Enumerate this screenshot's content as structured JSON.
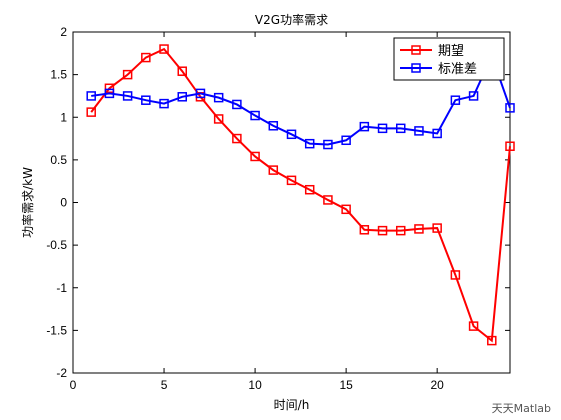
{
  "chart_data": {
    "type": "line",
    "title": "V2G功率需求",
    "xlabel": "时间/h",
    "ylabel": "功率需求/kW",
    "xlim": [
      0,
      24
    ],
    "ylim": [
      -2,
      2
    ],
    "xticks": [
      0,
      5,
      10,
      15,
      20
    ],
    "yticks": [
      -2,
      -1.5,
      -1,
      -0.5,
      0,
      0.5,
      1,
      1.5,
      2
    ],
    "x": [
      1,
      2,
      3,
      4,
      5,
      6,
      7,
      8,
      9,
      10,
      11,
      12,
      13,
      14,
      15,
      16,
      17,
      18,
      19,
      20,
      21,
      22,
      23,
      24
    ],
    "series": [
      {
        "name": "期望",
        "color": "#ff0000",
        "marker": "square",
        "values": [
          1.06,
          1.34,
          1.5,
          1.7,
          1.8,
          1.54,
          1.24,
          0.98,
          0.75,
          0.54,
          0.38,
          0.26,
          0.15,
          0.03,
          -0.08,
          -0.32,
          -0.33,
          -0.33,
          -0.31,
          -0.3,
          -0.85,
          -1.45,
          -1.62,
          0.66
        ]
      },
      {
        "name": "标准差",
        "color": "#0000ff",
        "marker": "square",
        "values": [
          1.25,
          1.28,
          1.25,
          1.2,
          1.16,
          1.24,
          1.28,
          1.23,
          1.15,
          1.02,
          0.9,
          0.8,
          0.69,
          0.68,
          0.73,
          0.89,
          0.87,
          0.87,
          0.84,
          0.81,
          1.2,
          1.25,
          1.72,
          1.11
        ]
      }
    ],
    "grid": false,
    "legend_position": "top-right"
  },
  "watermark": "天天Matlab"
}
